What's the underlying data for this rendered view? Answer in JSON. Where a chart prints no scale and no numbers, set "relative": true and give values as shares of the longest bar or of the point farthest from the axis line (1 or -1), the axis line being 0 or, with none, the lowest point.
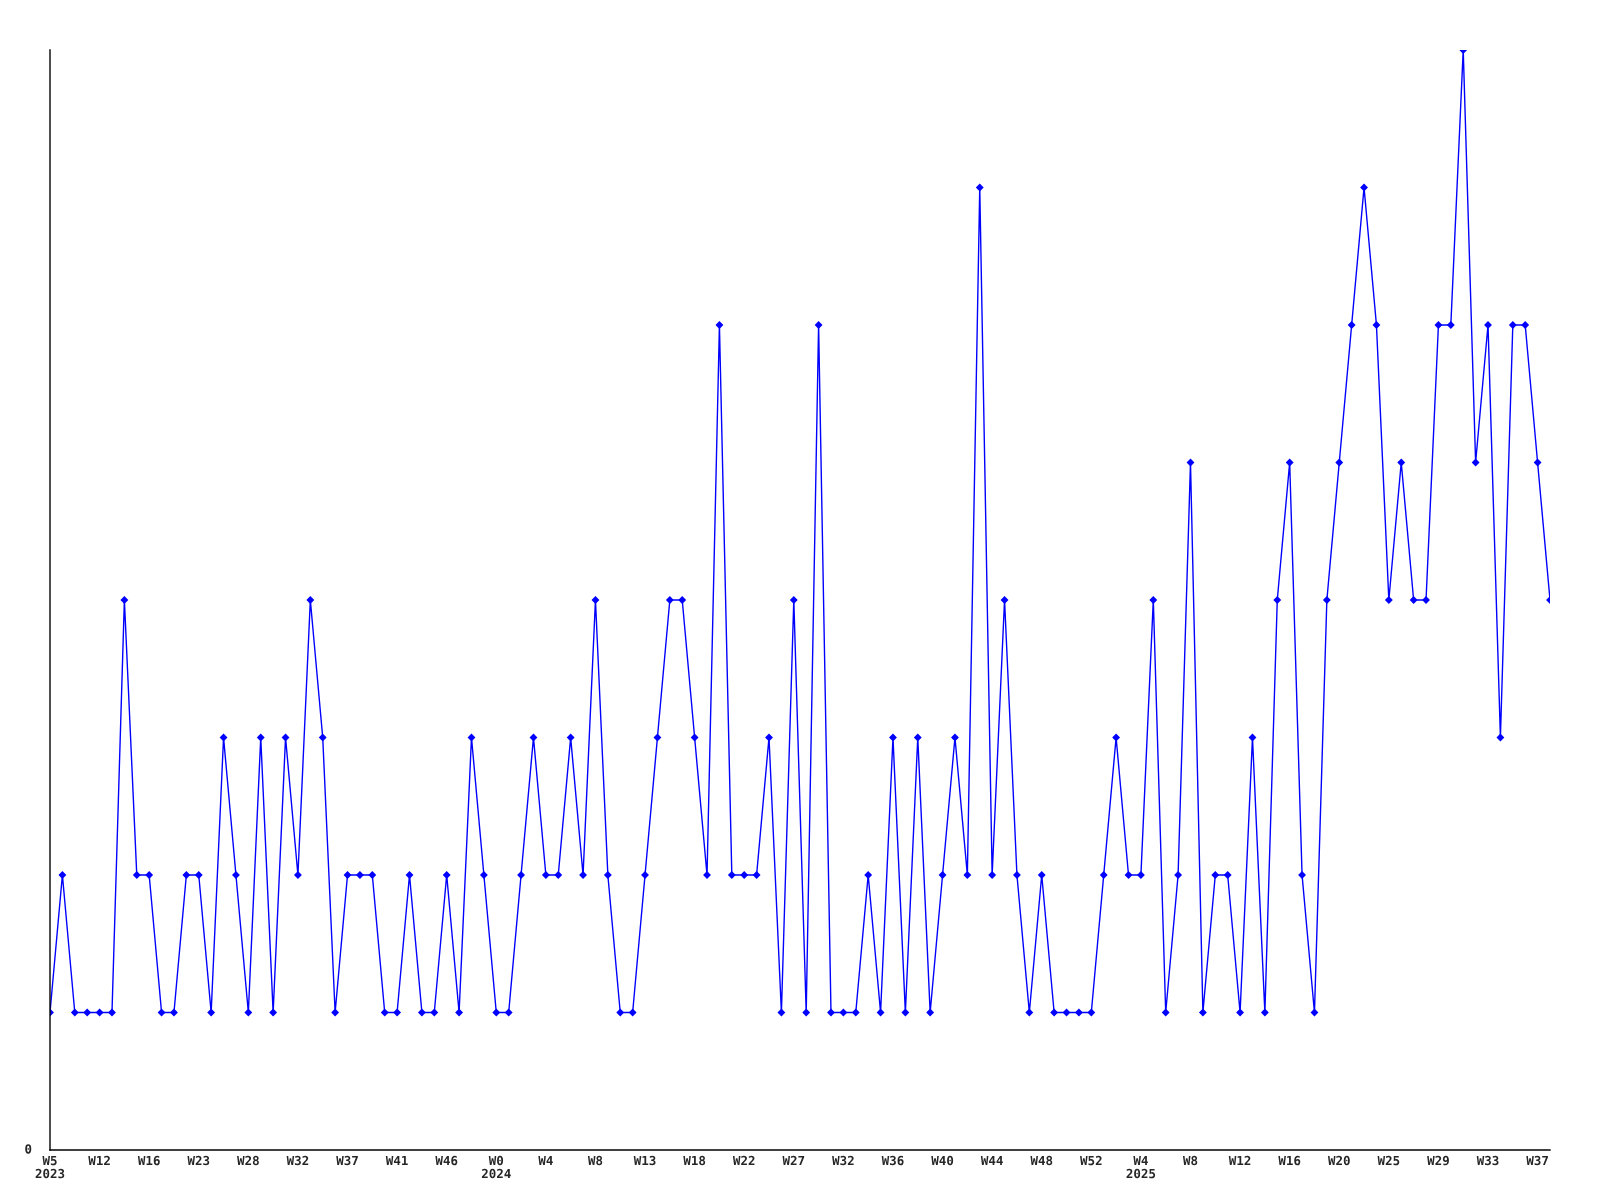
{
  "chart_data": {
    "type": "line",
    "relative": true,
    "marker": "diamond",
    "line_style": "solid",
    "grid": false,
    "legend": false,
    "annotations": [
      "0"
    ],
    "categories": [
      "W5\n2023",
      null,
      null,
      null,
      "W12",
      null,
      null,
      null,
      "W16",
      null,
      null,
      null,
      "W23",
      null,
      null,
      null,
      "W28",
      null,
      null,
      null,
      "W32",
      null,
      null,
      null,
      "W37",
      null,
      null,
      null,
      "W41",
      null,
      null,
      null,
      "W46",
      null,
      null,
      null,
      "W0\n2024",
      null,
      null,
      null,
      "W4",
      null,
      null,
      null,
      "W8",
      null,
      null,
      null,
      "W13",
      null,
      null,
      null,
      "W18",
      null,
      null,
      null,
      "W22",
      null,
      null,
      null,
      "W27",
      null,
      null,
      null,
      "W32",
      null,
      null,
      null,
      "W36",
      null,
      null,
      null,
      "W40",
      null,
      null,
      null,
      "W44",
      null,
      null,
      null,
      "W48",
      null,
      null,
      null,
      "W52",
      null,
      null,
      null,
      "W4\n2025",
      null,
      null,
      null,
      "W8",
      null,
      null,
      null,
      "W12",
      null,
      null,
      null,
      "W16",
      null,
      null,
      null,
      "W20",
      null,
      null,
      null,
      "W25",
      null,
      null,
      null,
      "W29",
      null,
      null,
      null,
      "W33",
      null,
      null,
      null,
      "W37",
      null
    ],
    "series": [
      {
        "color": "#0000ff",
        "values": [
          0.125,
          0.25,
          0.125,
          0.125,
          0.125,
          0.125,
          0.5,
          0.25,
          0.25,
          0.125,
          0.125,
          0.25,
          0.25,
          0.125,
          0.375,
          0.25,
          0.125,
          0.375,
          0.125,
          0.375,
          0.25,
          0.5,
          0.375,
          0.125,
          0.25,
          0.25,
          0.25,
          0.125,
          0.125,
          0.25,
          0.125,
          0.125,
          0.25,
          0.125,
          0.375,
          0.25,
          0.125,
          0.125,
          0.25,
          0.375,
          0.25,
          0.25,
          0.375,
          0.25,
          0.5,
          0.25,
          0.125,
          0.125,
          0.25,
          0.375,
          0.5,
          0.5,
          0.375,
          0.25,
          0.75,
          0.25,
          0.25,
          0.25,
          0.375,
          0.125,
          0.5,
          0.125,
          0.75,
          0.125,
          0.125,
          0.125,
          0.25,
          0.125,
          0.375,
          0.125,
          0.375,
          0.125,
          0.25,
          0.375,
          0.25,
          0.875,
          0.25,
          0.5,
          0.25,
          0.125,
          0.25,
          0.125,
          0.125,
          0.125,
          0.125,
          0.25,
          0.375,
          0.25,
          0.25,
          0.5,
          0.125,
          0.25,
          0.625,
          0.125,
          0.25,
          0.25,
          0.125,
          0.375,
          0.125,
          0.5,
          0.625,
          0.25,
          0.125,
          0.5,
          0.625,
          0.75,
          0.875,
          0.75,
          0.5,
          0.625,
          0.5,
          0.5,
          0.75,
          0.75,
          1,
          0.625,
          0.75,
          0.375,
          0.75,
          0.75,
          0.625,
          0.5
        ]
      }
    ]
  }
}
